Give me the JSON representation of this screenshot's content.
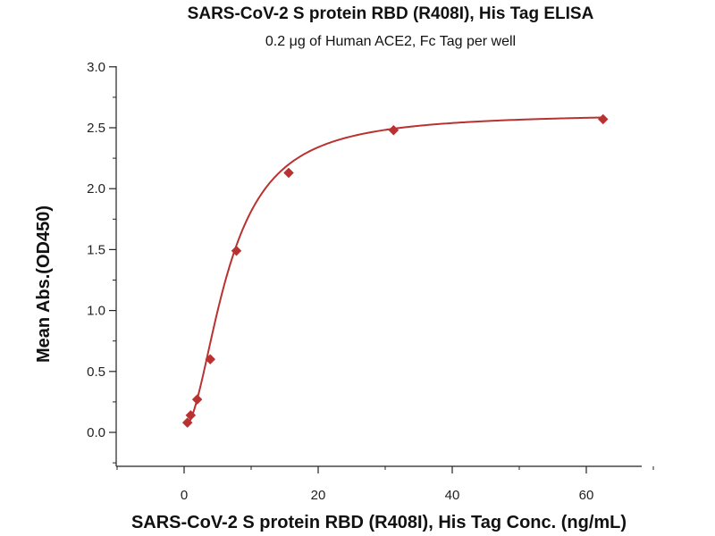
{
  "chart_data": {
    "type": "scatter",
    "title": "SARS-CoV-2 S protein RBD (R408I), His Tag ELISA",
    "subtitle": "0.2 μg of Human ACE2, Fc Tag per well",
    "xlabel": "SARS-CoV-2 S protein RBD (R408I), His Tag Conc. (ng/mL)",
    "ylabel": "Mean Abs.(OD450)",
    "xlim": [
      -10,
      70
    ],
    "ylim": [
      -0.25,
      3.0
    ],
    "x_ticks": [
      0,
      20,
      40,
      60
    ],
    "x_tick_labels": [
      "0",
      "20",
      "40",
      "60"
    ],
    "y_ticks": [
      0.0,
      0.5,
      1.0,
      1.5,
      2.0,
      2.5,
      3.0
    ],
    "y_tick_labels": [
      "0.0",
      "0.5",
      "1.0",
      "1.5",
      "2.0",
      "2.5",
      "3.0"
    ],
    "grid": false,
    "legend": "none",
    "marker": "diamond",
    "series": [
      {
        "x": [
          0.49,
          0.98,
          1.95,
          3.9,
          7.8,
          15.6,
          31.25,
          62.5
        ],
        "y": [
          0.08,
          0.14,
          0.27,
          0.6,
          1.49,
          2.13,
          2.48,
          2.57
        ],
        "color": "#b83232"
      }
    ],
    "fit_curve": {
      "model": "4PL",
      "bottom": 0.04,
      "top": 2.62,
      "ec50": 6.6,
      "hill": 1.9,
      "color": "#b83232"
    }
  }
}
